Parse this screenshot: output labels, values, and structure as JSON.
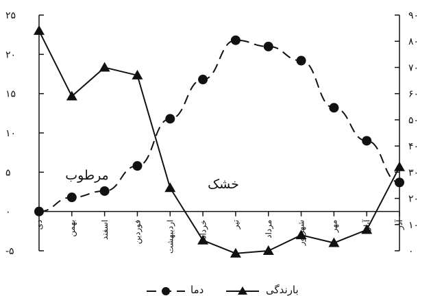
{
  "chart_data": {
    "type": "line",
    "categories": [
      "دی",
      "بهمن",
      "اسفند",
      "فوردین",
      "اردیبهشت",
      "خرداد",
      "تیر",
      "مرداد",
      "شهریور",
      "مهر",
      "آبان",
      "آذر"
    ],
    "left_axis": {
      "ylim": [
        -5,
        25
      ],
      "ticks": [
        -5,
        0,
        5,
        10,
        15,
        20,
        25
      ],
      "tick_labels": [
        "-۵",
        "۰",
        "۵",
        "۱۰",
        "۱۵",
        "۲۰",
        "۲۵"
      ]
    },
    "right_axis": {
      "ylim": [
        0,
        90
      ],
      "ticks": [
        0,
        10,
        20,
        30,
        40,
        50,
        60,
        70,
        80,
        90
      ],
      "tick_labels": [
        "۰",
        "۱۰",
        "۲۰",
        "۳۰",
        "۴۰",
        "۵۰",
        "۶۰",
        "۷۰",
        "۸۰",
        "۹۰"
      ]
    },
    "series": [
      {
        "name": "دما",
        "axis": "left",
        "marker": "circle",
        "line": "dashed",
        "values": [
          0,
          1.8,
          2.6,
          5.8,
          11.8,
          16.8,
          21.8,
          21.0,
          19.2,
          13.2,
          9.0,
          3.7
        ]
      },
      {
        "name": "بارندگی",
        "axis": "right",
        "marker": "triangle",
        "line": "solid",
        "values": [
          84,
          59,
          70,
          67,
          24,
          4,
          -1,
          0,
          6,
          3,
          8,
          32
        ]
      }
    ],
    "annotations": [
      {
        "text": "مرطوب"
      },
      {
        "text": "خشک"
      }
    ],
    "legend": [
      {
        "label": "دما",
        "marker": "circle",
        "line": "dashed"
      },
      {
        "label": "بارندگی",
        "marker": "triangle",
        "line": "solid"
      }
    ]
  }
}
